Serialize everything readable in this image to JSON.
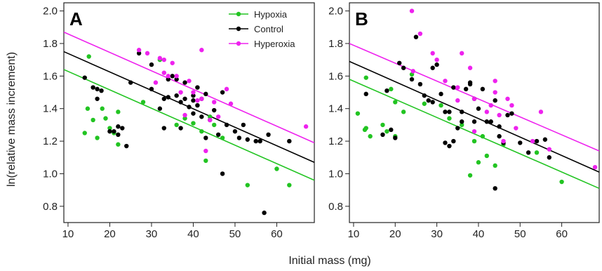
{
  "colors": {
    "Hypoxia": "#22c422",
    "Control": "#000000",
    "Hyperoxia": "#ee22ee"
  },
  "xlabel": "Initial mass (mg)",
  "ylabel": "ln(relative mass increment)",
  "legend": {
    "Hypoxia": "Hypoxia",
    "Control": "Control",
    "Hyperoxia": "Hyperoxia"
  },
  "chart_data": [
    {
      "type": "scatter",
      "panel_label": "A",
      "xlim": [
        9,
        69
      ],
      "ylim": [
        0.7,
        2.05
      ],
      "xticks": [
        10,
        20,
        30,
        40,
        50,
        60
      ],
      "yticks": [
        0.8,
        1.0,
        1.2,
        1.4,
        1.6,
        1.8,
        2.0
      ],
      "legend_position": "top-right",
      "series": [
        {
          "name": "Hypoxia",
          "points": [
            [
              14,
              1.25
            ],
            [
              14.7,
              1.4
            ],
            [
              15,
              1.72
            ],
            [
              16,
              1.33
            ],
            [
              17,
              1.22
            ],
            [
              18.2,
              1.4
            ],
            [
              19,
              1.34
            ],
            [
              20,
              1.28
            ],
            [
              21,
              1.25
            ],
            [
              22,
              1.18
            ],
            [
              22,
              1.38
            ],
            [
              28,
              1.44
            ],
            [
              32,
              1.7
            ],
            [
              36,
              1.3
            ],
            [
              38,
              1.34
            ],
            [
              40,
              1.31
            ],
            [
              42,
              1.26
            ],
            [
              43,
              1.08
            ],
            [
              44,
              1.35
            ],
            [
              45,
              1.3
            ],
            [
              47,
              1.22
            ],
            [
              53,
              0.93
            ],
            [
              60,
              1.03
            ],
            [
              63,
              0.93
            ]
          ],
          "fit": [
            [
              9,
              1.64
            ],
            [
              69,
              0.96
            ]
          ]
        },
        {
          "name": "Control",
          "points": [
            [
              14,
              1.59
            ],
            [
              16,
              1.53
            ],
            [
              17,
              1.46
            ],
            [
              17,
              1.52
            ],
            [
              18,
              1.51
            ],
            [
              20,
              1.26
            ],
            [
              21,
              1.26
            ],
            [
              22,
              1.24
            ],
            [
              22,
              1.29
            ],
            [
              23,
              1.28
            ],
            [
              24,
              1.17
            ],
            [
              25,
              1.56
            ],
            [
              27,
              1.74
            ],
            [
              30,
              1.52
            ],
            [
              30,
              1.67
            ],
            [
              32,
              1.4
            ],
            [
              33,
              1.28
            ],
            [
              33,
              1.46
            ],
            [
              34,
              1.47
            ],
            [
              34,
              1.58
            ],
            [
              35,
              1.6
            ],
            [
              36,
              1.48
            ],
            [
              36,
              1.58
            ],
            [
              37,
              1.44
            ],
            [
              37,
              1.28
            ],
            [
              38,
              1.56
            ],
            [
              38,
              1.46
            ],
            [
              39,
              1.41
            ],
            [
              40,
              1.45
            ],
            [
              40,
              1.37
            ],
            [
              40,
              1.48
            ],
            [
              41,
              1.42
            ],
            [
              41,
              1.53
            ],
            [
              42,
              1.46
            ],
            [
              42,
              1.35
            ],
            [
              43,
              1.49
            ],
            [
              43,
              1.22
            ],
            [
              44,
              1.33
            ],
            [
              45,
              1.39
            ],
            [
              46,
              1.24
            ],
            [
              47,
              1.0
            ],
            [
              47,
              1.5
            ],
            [
              48,
              1.3
            ],
            [
              50,
              1.26
            ],
            [
              51,
              1.22
            ],
            [
              52,
              1.3
            ],
            [
              53,
              1.21
            ],
            [
              55,
              1.2
            ],
            [
              56,
              1.2
            ],
            [
              57,
              0.76
            ],
            [
              58,
              1.24
            ],
            [
              63,
              1.2
            ]
          ],
          "fit": [
            [
              9,
              1.75
            ],
            [
              69,
              1.07
            ]
          ]
        },
        {
          "name": "Hyperoxia",
          "points": [
            [
              27,
              1.76
            ],
            [
              29,
              1.74
            ],
            [
              31,
              1.56
            ],
            [
              32,
              1.71
            ],
            [
              33,
              1.7
            ],
            [
              33,
              1.62
            ],
            [
              34,
              1.6
            ],
            [
              35,
              1.68
            ],
            [
              36,
              1.6
            ],
            [
              37,
              1.5
            ],
            [
              38,
              1.36
            ],
            [
              39,
              1.57
            ],
            [
              40,
              1.5
            ],
            [
              41,
              1.45
            ],
            [
              42,
              1.76
            ],
            [
              42,
              1.46
            ],
            [
              43,
              1.14
            ],
            [
              44,
              1.33
            ],
            [
              45,
              1.44
            ],
            [
              46,
              1.35
            ],
            [
              48,
              1.52
            ],
            [
              49,
              1.43
            ],
            [
              67,
              1.29
            ]
          ],
          "fit": [
            [
              9,
              1.87
            ],
            [
              69,
              1.19
            ]
          ]
        }
      ]
    },
    {
      "type": "scatter",
      "panel_label": "B",
      "xlim": [
        9,
        69
      ],
      "ylim": [
        0.7,
        2.05
      ],
      "xticks": [
        10,
        20,
        30,
        40,
        50,
        60
      ],
      "yticks": [
        0.8,
        1.0,
        1.2,
        1.4,
        1.6,
        1.8,
        2.0
      ],
      "series": [
        {
          "name": "Hypoxia",
          "points": [
            [
              11,
              1.37
            ],
            [
              12.7,
              1.27
            ],
            [
              13,
              1.28
            ],
            [
              13,
              1.59
            ],
            [
              14,
              1.23
            ],
            [
              17,
              1.3
            ],
            [
              18,
              1.26
            ],
            [
              19,
              1.52
            ],
            [
              20,
              1.23
            ],
            [
              20,
              1.44
            ],
            [
              22,
              1.38
            ],
            [
              24,
              1.61
            ],
            [
              27,
              1.43
            ],
            [
              31,
              1.42
            ],
            [
              33,
              1.34
            ],
            [
              36,
              1.3
            ],
            [
              38,
              0.99
            ],
            [
              39,
              1.2
            ],
            [
              40,
              1.07
            ],
            [
              41,
              1.23
            ],
            [
              42,
              1.11
            ],
            [
              44,
              1.05
            ],
            [
              46,
              1.18
            ],
            [
              54,
              1.13
            ],
            [
              60,
              0.95
            ]
          ],
          "fit": [
            [
              9,
              1.58
            ],
            [
              69,
              0.91
            ]
          ]
        },
        {
          "name": "Control",
          "points": [
            [
              13,
              1.49
            ],
            [
              17,
              1.24
            ],
            [
              18,
              1.51
            ],
            [
              19,
              1.27
            ],
            [
              20,
              1.22
            ],
            [
              21,
              1.68
            ],
            [
              22,
              1.65
            ],
            [
              24,
              1.58
            ],
            [
              25,
              1.84
            ],
            [
              26,
              1.55
            ],
            [
              27,
              1.48
            ],
            [
              28,
              1.45
            ],
            [
              29,
              1.44
            ],
            [
              29,
              1.65
            ],
            [
              30,
              1.67
            ],
            [
              31,
              1.49
            ],
            [
              32,
              1.38
            ],
            [
              32,
              1.19
            ],
            [
              33,
              1.17
            ],
            [
              33,
              1.38
            ],
            [
              34,
              1.53
            ],
            [
              34,
              1.2
            ],
            [
              35,
              1.28
            ],
            [
              36,
              1.38
            ],
            [
              36,
              1.32
            ],
            [
              37,
              1.52
            ],
            [
              38,
              1.55
            ],
            [
              38,
              1.56
            ],
            [
              39,
              1.46
            ],
            [
              39,
              1.32
            ],
            [
              40,
              1.4
            ],
            [
              41,
              1.52
            ],
            [
              42,
              1.32
            ],
            [
              43,
              1.32
            ],
            [
              44,
              0.91
            ],
            [
              44,
              1.45
            ],
            [
              45,
              1.23
            ],
            [
              45,
              1.29
            ],
            [
              46,
              1.19
            ],
            [
              47,
              1.36
            ],
            [
              48,
              1.37
            ],
            [
              50,
              1.19
            ],
            [
              52,
              1.13
            ],
            [
              54,
              1.2
            ],
            [
              56,
              1.21
            ],
            [
              57,
              1.1
            ]
          ],
          "fit": [
            [
              9,
              1.69
            ],
            [
              69,
              1.01
            ]
          ]
        },
        {
          "name": "Hyperoxia",
          "points": [
            [
              24,
              2.0
            ],
            [
              24.3,
              1.63
            ],
            [
              26,
              1.86
            ],
            [
              29,
              1.74
            ],
            [
              30,
              1.7
            ],
            [
              32,
              1.57
            ],
            [
              35,
              1.53
            ],
            [
              35,
              1.45
            ],
            [
              36,
              1.74
            ],
            [
              38,
              1.65
            ],
            [
              39,
              1.46
            ],
            [
              39,
              1.26
            ],
            [
              42,
              1.38
            ],
            [
              43,
              1.42
            ],
            [
              44,
              1.5
            ],
            [
              44,
              1.57
            ],
            [
              45,
              1.36
            ],
            [
              46,
              1.2
            ],
            [
              47,
              1.46
            ],
            [
              48,
              1.42
            ],
            [
              49,
              1.28
            ],
            [
              53,
              1.2
            ],
            [
              55,
              1.38
            ],
            [
              57,
              1.15
            ],
            [
              68,
              1.04
            ]
          ],
          "fit": [
            [
              9,
              1.8
            ],
            [
              69,
              1.14
            ]
          ]
        }
      ]
    }
  ]
}
